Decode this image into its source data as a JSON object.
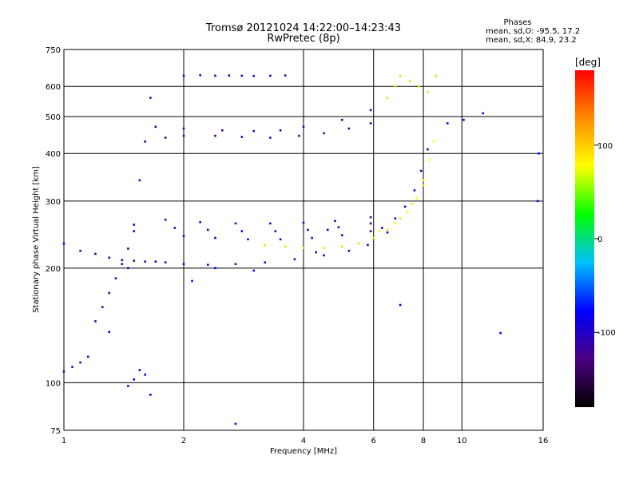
{
  "chart_data": {
    "type": "scatter",
    "title": "Tromsø 20121024 14:22:00–14:23:43",
    "subtitle": "RwPretec (8p)",
    "xlabel": "Frequency [MHz]",
    "ylabel": "Stationary phase Virtual Height [km]",
    "x_scale": "log",
    "y_scale": "log",
    "xlim": [
      1,
      16
    ],
    "ylim": [
      75,
      750
    ],
    "x_ticks": [
      1,
      2,
      4,
      6,
      8,
      10,
      16
    ],
    "x_tick_labels": [
      "1",
      "2",
      "4",
      "6",
      "8",
      "10",
      "16"
    ],
    "y_ticks": [
      75,
      100,
      200,
      300,
      400,
      500,
      600,
      750
    ],
    "y_tick_labels": [
      "75",
      "100",
      "200",
      "300",
      "400",
      "500",
      "600",
      "750"
    ],
    "grid": true,
    "phase_box": {
      "title": "Phases",
      "line_o": "mean, sd,O: -95.5, 17.2",
      "line_x": "mean, sd,X:  84.9, 23.2"
    },
    "colorbar": {
      "label": "[deg]",
      "range": [
        -180,
        180
      ],
      "ticks": [
        100,
        0,
        -100
      ],
      "tick_labels": [
        "100",
        "0",
        "-100"
      ],
      "stops": [
        "#000000",
        "#4b0082",
        "#0000ff",
        "#00bfff",
        "#00ff00",
        "#ffff00",
        "#ff8c00",
        "#ff0000"
      ]
    },
    "traces": [
      {
        "x": [
          1.0,
          1.05,
          1.1,
          1.15
        ],
        "y": [
          107,
          110,
          113,
          117
        ],
        "phase": -110
      },
      {
        "x": [
          1.2,
          1.25,
          1.3,
          1.35,
          1.4,
          1.45,
          1.5
        ],
        "y": [
          145,
          158,
          172,
          188,
          205,
          225,
          250
        ],
        "phase": -110
      },
      {
        "x": [
          1.1,
          1.2,
          1.3,
          1.4,
          1.5,
          1.6,
          1.7,
          1.8,
          2.0,
          2.3,
          2.7,
          3.2,
          3.8,
          4.5,
          5.2,
          5.8
        ],
        "y": [
          222,
          218,
          213,
          210,
          209,
          208,
          208,
          207,
          205,
          204,
          205,
          207,
          211,
          216,
          222,
          230
        ],
        "phase": -110
      },
      {
        "x": [
          1.45,
          1.5,
          1.55,
          1.6,
          1.65
        ],
        "y": [
          200,
          260,
          340,
          430,
          560
        ],
        "phase": -105
      },
      {
        "x": [
          1.6,
          1.8,
          2.0,
          2.4,
          2.8,
          3.3,
          3.9,
          4.5,
          5.2,
          5.9
        ],
        "y": [
          430,
          440,
          445,
          445,
          442,
          440,
          445,
          452,
          465,
          480
        ],
        "phase": -115
      },
      {
        "x": [
          1.7,
          2.0,
          2.5,
          3.0,
          3.5,
          4.0,
          5.0,
          5.9
        ],
        "y": [
          470,
          465,
          460,
          458,
          460,
          470,
          490,
          520
        ],
        "phase": -110
      },
      {
        "x": [
          2.0,
          2.2,
          2.4,
          2.6,
          2.8,
          3.0,
          3.3,
          3.6
        ],
        "y": [
          640,
          642,
          640,
          641,
          640,
          639,
          640,
          641
        ],
        "phase": -110
      },
      {
        "x": [
          1.8,
          2.2,
          2.7,
          3.3,
          4.0,
          4.8,
          5.9
        ],
        "y": [
          268,
          264,
          262,
          262,
          263,
          266,
          272
        ],
        "phase": -105
      },
      {
        "x": [
          1.9,
          2.3,
          2.8,
          3.4,
          4.1,
          4.9,
          5.9
        ],
        "y": [
          255,
          252,
          250,
          250,
          252,
          256,
          262
        ],
        "phase": -105
      },
      {
        "x": [
          2.0,
          2.4,
          2.9,
          3.5,
          4.2,
          5.0,
          5.9
        ],
        "y": [
          243,
          240,
          238,
          238,
          240,
          244,
          250
        ],
        "phase": -105
      },
      {
        "x": [
          3.2,
          3.6,
          4.0,
          4.5,
          5.0,
          5.5,
          6.0,
          6.5,
          7.0,
          7.5,
          8.0
        ],
        "y": [
          230,
          228,
          226,
          226,
          228,
          232,
          240,
          252,
          270,
          295,
          330
        ],
        "phase": 90
      },
      {
        "x": [
          6.2,
          6.8,
          7.3,
          7.7,
          8.0,
          8.3,
          8.5
        ],
        "y": [
          250,
          262,
          280,
          305,
          340,
          385,
          430
        ],
        "phase": 80
      },
      {
        "x": [
          6.3,
          6.8,
          7.2,
          7.6,
          7.9,
          8.2
        ],
        "y": [
          255,
          270,
          290,
          320,
          360,
          410
        ],
        "phase": -110
      },
      {
        "x": [
          6.5,
          6.8,
          7.0,
          7.4,
          7.8,
          8.2,
          8.6
        ],
        "y": [
          560,
          600,
          640,
          620,
          600,
          580,
          640
        ],
        "phase": 60
      },
      {
        "x": [
          1.0,
          1.3,
          1.45,
          1.5,
          1.55,
          1.6,
          1.65,
          2.1,
          2.4,
          2.7,
          3.0,
          4.3,
          4.6,
          6.5,
          7.0,
          9.2,
          10.1,
          11.3,
          12.5,
          15.5,
          15.6
        ],
        "y": [
          232,
          136,
          98,
          102,
          108,
          105,
          93,
          185,
          200,
          78,
          197,
          220,
          252,
          248,
          160,
          480,
          490,
          510,
          135,
          300,
          400
        ],
        "phase": -80
      }
    ]
  }
}
